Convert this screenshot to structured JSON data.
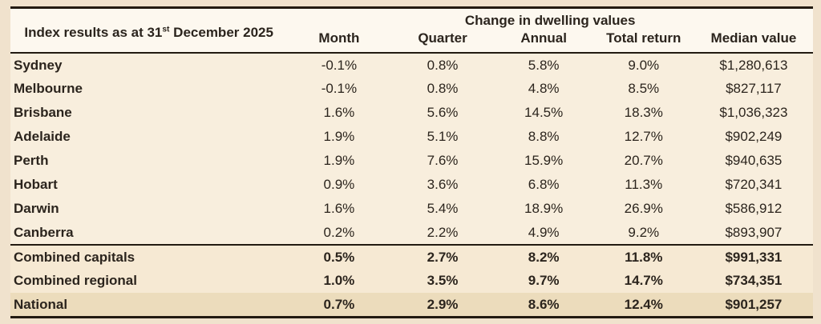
{
  "colors": {
    "page-bg": "#f0e2cd",
    "table-bg": "#f8eedd",
    "header-bg": "#fdf8ef",
    "summary-bg": "#f6e9d3",
    "total-bg": "#ecdcbc",
    "rule": "#221a11",
    "text": "#2b241d"
  },
  "table": {
    "title_prefix": "Index results as at 31",
    "title_ordinal": "st",
    "title_suffix": " December 2025",
    "group_header": "Change in dwelling values",
    "columns": [
      "Month",
      "Quarter",
      "Annual",
      "Total return",
      "Median value"
    ],
    "rows": [
      {
        "type": "city",
        "label": "Sydney",
        "values": [
          "-0.1%",
          "0.8%",
          "5.8%",
          "9.0%",
          "$1,280,613"
        ]
      },
      {
        "type": "city",
        "label": "Melbourne",
        "values": [
          "-0.1%",
          "0.8%",
          "4.8%",
          "8.5%",
          "$827,117"
        ]
      },
      {
        "type": "city",
        "label": "Brisbane",
        "values": [
          "1.6%",
          "5.6%",
          "14.5%",
          "18.3%",
          "$1,036,323"
        ]
      },
      {
        "type": "city",
        "label": "Adelaide",
        "values": [
          "1.9%",
          "5.1%",
          "8.8%",
          "12.7%",
          "$902,249"
        ]
      },
      {
        "type": "city",
        "label": "Perth",
        "values": [
          "1.9%",
          "7.6%",
          "15.9%",
          "20.7%",
          "$940,635"
        ]
      },
      {
        "type": "city",
        "label": "Hobart",
        "values": [
          "0.9%",
          "3.6%",
          "6.8%",
          "11.3%",
          "$720,341"
        ]
      },
      {
        "type": "city",
        "label": "Darwin",
        "values": [
          "1.6%",
          "5.4%",
          "18.9%",
          "26.9%",
          "$586,912"
        ]
      },
      {
        "type": "city",
        "label": "Canberra",
        "values": [
          "0.2%",
          "2.2%",
          "4.9%",
          "9.2%",
          "$893,907"
        ]
      },
      {
        "type": "summary",
        "label": "Combined capitals",
        "values": [
          "0.5%",
          "2.7%",
          "8.2%",
          "11.8%",
          "$991,331"
        ]
      },
      {
        "type": "summary",
        "label": "Combined regional",
        "values": [
          "1.0%",
          "3.5%",
          "9.7%",
          "14.7%",
          "$734,351"
        ]
      },
      {
        "type": "total",
        "label": "National",
        "values": [
          "0.7%",
          "2.9%",
          "8.6%",
          "12.4%",
          "$901,257"
        ]
      }
    ]
  }
}
